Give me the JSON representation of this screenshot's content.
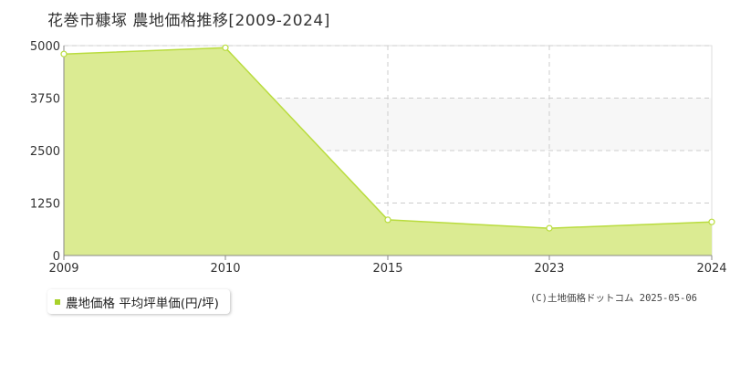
{
  "title": "花巻市糠塚 農地価格推移[2009-2024]",
  "credit": "(C)土地価格ドットコム 2025-05-06",
  "colors": {
    "area_fill": "#dbeb92",
    "line": "#b9dc3e",
    "marker_fill": "#ffffff",
    "marker_stroke": "#b9dc3e",
    "band": "#f7f7f7",
    "grid": "#cccccc",
    "axis": "#888888",
    "legend_swatch": "#a8d12a"
  },
  "chart_data": {
    "type": "area",
    "title": "花巻市糠塚 農地価格推移[2009-2024]",
    "x": [
      "2009",
      "2010",
      "2015",
      "2023",
      "2024"
    ],
    "series": [
      {
        "name": "農地価格 平均坪単価(円/坪)",
        "values": [
          4800,
          4950,
          850,
          650,
          800
        ]
      }
    ],
    "y_ticks": [
      "0",
      "1250",
      "2500",
      "3750",
      "5000"
    ],
    "ylim": [
      0,
      5000
    ],
    "grid": true,
    "legend_position": "bottom-left"
  }
}
